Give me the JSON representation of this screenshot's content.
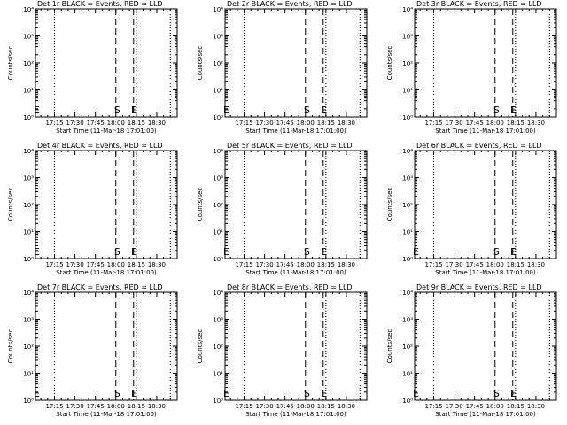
{
  "figure": {
    "background": "#ffffff",
    "ink": "#000000",
    "panel_count": 9
  },
  "chart_data": [
    {
      "type": "line",
      "title": "Det 1r BLACK = Events, RED = LLD",
      "xlabel": "Start Time (11-Mar-18 17:01:00)",
      "ylabel": "Counts/sec",
      "y_scale": "log",
      "ylim": [
        1,
        10000
      ],
      "y_tick_labels": [
        "10⁰",
        "10¹",
        "10²",
        "10³",
        "10⁴"
      ],
      "x_tick_labels": [
        "17:15",
        "17:30",
        "17:45",
        "18:00",
        "18:15",
        "18:30"
      ],
      "x_tick_minutes": [
        1035,
        1050,
        1065,
        1080,
        1095,
        1110
      ],
      "xlim_minutes": [
        1021,
        1125
      ],
      "series": [],
      "dotted_lines": [
        1035,
        1095,
        1120
      ],
      "dashed_lines": [
        1080,
        1093
      ],
      "markers": [
        {
          "label": "S",
          "x": 1081,
          "y": 1
        },
        {
          "label": "E",
          "x": 1093.5,
          "y": 1
        },
        {
          "label": "E",
          "x": 1022,
          "y": 1
        }
      ]
    },
    {
      "type": "line",
      "title": "Det 2r BLACK = Events, RED = LLD",
      "xlabel": "Start Time (11-Mar-18 17:01:00)",
      "ylabel": "Counts/sec",
      "y_scale": "log",
      "ylim": [
        1,
        10000
      ],
      "y_tick_labels": [
        "10⁰",
        "10¹",
        "10²",
        "10³",
        "10⁴"
      ],
      "x_tick_labels": [
        "17:15",
        "17:30",
        "17:45",
        "18:00",
        "18:15",
        "18:30"
      ],
      "x_tick_minutes": [
        1035,
        1050,
        1065,
        1080,
        1095,
        1110
      ],
      "xlim_minutes": [
        1021,
        1125
      ],
      "series": [],
      "dotted_lines": [
        1035,
        1095,
        1120
      ],
      "dashed_lines": [
        1080,
        1093
      ],
      "markers": [
        {
          "label": "S",
          "x": 1081,
          "y": 1
        },
        {
          "label": "E",
          "x": 1093.5,
          "y": 1
        },
        {
          "label": "E",
          "x": 1022,
          "y": 1
        }
      ]
    },
    {
      "type": "line",
      "title": "Det 3r BLACK = Events, RED = LLD",
      "xlabel": "Start Time (11-Mar-18 17:01:00)",
      "ylabel": "Counts/sec",
      "y_scale": "log",
      "ylim": [
        1,
        10000
      ],
      "y_tick_labels": [
        "10⁰",
        "10¹",
        "10²",
        "10³",
        "10⁴"
      ],
      "x_tick_labels": [
        "17:15",
        "17:30",
        "17:45",
        "18:00",
        "18:15",
        "18:30"
      ],
      "x_tick_minutes": [
        1035,
        1050,
        1065,
        1080,
        1095,
        1110
      ],
      "xlim_minutes": [
        1021,
        1125
      ],
      "series": [],
      "dotted_lines": [
        1035,
        1095,
        1120
      ],
      "dashed_lines": [
        1080,
        1093
      ],
      "markers": [
        {
          "label": "S",
          "x": 1081,
          "y": 1
        },
        {
          "label": "E",
          "x": 1093.5,
          "y": 1
        }
      ]
    },
    {
      "type": "line",
      "title": "Det 4r BLACK = Events, RED = LLD",
      "xlabel": "Start Time (11-Mar-18 17:01:00)",
      "ylabel": "Counts/sec",
      "y_scale": "log",
      "ylim": [
        1,
        10000
      ],
      "y_tick_labels": [
        "10⁰",
        "10¹",
        "10²",
        "10³",
        "10⁴"
      ],
      "x_tick_labels": [
        "17:15",
        "17:30",
        "17:45",
        "18:00",
        "18:15",
        "18:30"
      ],
      "x_tick_minutes": [
        1035,
        1050,
        1065,
        1080,
        1095,
        1110
      ],
      "xlim_minutes": [
        1021,
        1125
      ],
      "series": [],
      "dotted_lines": [
        1035,
        1095,
        1120
      ],
      "dashed_lines": [
        1080,
        1093
      ],
      "markers": [
        {
          "label": "S",
          "x": 1081,
          "y": 1
        },
        {
          "label": "E",
          "x": 1093.5,
          "y": 1
        },
        {
          "label": "E",
          "x": 1022,
          "y": 1
        }
      ]
    },
    {
      "type": "line",
      "title": "Det 5r BLACK = Events, RED = LLD",
      "xlabel": "Start Time (11-Mar-18 17:01:00)",
      "ylabel": "Counts/sec",
      "y_scale": "log",
      "ylim": [
        1,
        10000
      ],
      "y_tick_labels": [
        "10⁰",
        "10¹",
        "10²",
        "10³",
        "10⁴"
      ],
      "x_tick_labels": [
        "17:15",
        "17:30",
        "17:45",
        "18:00",
        "18:15",
        "18:30"
      ],
      "x_tick_minutes": [
        1035,
        1050,
        1065,
        1080,
        1095,
        1110
      ],
      "xlim_minutes": [
        1021,
        1125
      ],
      "series": [],
      "dotted_lines": [
        1035,
        1095,
        1120
      ],
      "dashed_lines": [
        1080,
        1093
      ],
      "markers": [
        {
          "label": "S",
          "x": 1081,
          "y": 1
        },
        {
          "label": "E",
          "x": 1093.5,
          "y": 1
        },
        {
          "label": "E",
          "x": 1022,
          "y": 1
        }
      ]
    },
    {
      "type": "line",
      "title": "Det 6r BLACK = Events, RED = LLD",
      "xlabel": "Start Time (11-Mar-18 17:01:00)",
      "ylabel": "Counts/sec",
      "y_scale": "log",
      "ylim": [
        1,
        10000
      ],
      "y_tick_labels": [
        "10⁰",
        "10¹",
        "10²",
        "10³",
        "10⁴"
      ],
      "x_tick_labels": [
        "17:15",
        "17:30",
        "17:45",
        "18:00",
        "18:15",
        "18:30"
      ],
      "x_tick_minutes": [
        1035,
        1050,
        1065,
        1080,
        1095,
        1110
      ],
      "xlim_minutes": [
        1021,
        1125
      ],
      "series": [],
      "dotted_lines": [
        1035,
        1095,
        1120
      ],
      "dashed_lines": [
        1080,
        1093
      ],
      "markers": [
        {
          "label": "S",
          "x": 1081,
          "y": 1
        },
        {
          "label": "E",
          "x": 1093.5,
          "y": 1
        },
        {
          "label": "E",
          "x": 1022,
          "y": 1
        }
      ]
    },
    {
      "type": "line",
      "title": "Det 7r BLACK = Events, RED = LLD",
      "xlabel": "Start Time (11-Mar-18 17:01:00)",
      "ylabel": "Counts/sec",
      "y_scale": "log",
      "ylim": [
        1,
        10000
      ],
      "y_tick_labels": [
        "10⁰",
        "10¹",
        "10²",
        "10³",
        "10⁴"
      ],
      "x_tick_labels": [
        "17:15",
        "17:30",
        "17:45",
        "18:00",
        "18:15",
        "18:30"
      ],
      "x_tick_minutes": [
        1035,
        1050,
        1065,
        1080,
        1095,
        1110
      ],
      "xlim_minutes": [
        1021,
        1125
      ],
      "series": [],
      "dotted_lines": [
        1035,
        1095,
        1120
      ],
      "dashed_lines": [
        1080,
        1093
      ],
      "markers": [
        {
          "label": "S",
          "x": 1081,
          "y": 1
        },
        {
          "label": "E",
          "x": 1093.5,
          "y": 1
        },
        {
          "label": "E",
          "x": 1022,
          "y": 1
        }
      ]
    },
    {
      "type": "line",
      "title": "Det 8r BLACK = Events, RED = LLD",
      "xlabel": "Start Time (11-Mar-18 17:01:00)",
      "ylabel": "Counts/sec",
      "y_scale": "log",
      "ylim": [
        1,
        10000
      ],
      "y_tick_labels": [
        "10⁰",
        "10¹",
        "10²",
        "10³",
        "10⁴"
      ],
      "x_tick_labels": [
        "17:15",
        "17:30",
        "17:45",
        "18:00",
        "18:15",
        "18:30"
      ],
      "x_tick_minutes": [
        1035,
        1050,
        1065,
        1080,
        1095,
        1110
      ],
      "xlim_minutes": [
        1021,
        1125
      ],
      "series": [],
      "dotted_lines": [
        1035,
        1095,
        1120
      ],
      "dashed_lines": [
        1080,
        1093
      ],
      "markers": [
        {
          "label": "S",
          "x": 1081,
          "y": 1
        },
        {
          "label": "E",
          "x": 1093.5,
          "y": 1
        },
        {
          "label": "E",
          "x": 1022,
          "y": 1
        }
      ]
    },
    {
      "type": "line",
      "title": "Det 9r BLACK = Events, RED = LLD",
      "xlabel": "Start Time (11-Mar-18 17:01:00)",
      "ylabel": "Counts/sec",
      "y_scale": "log",
      "ylim": [
        1,
        10000
      ],
      "y_tick_labels": [
        "10⁰",
        "10¹",
        "10²",
        "10³",
        "10⁴"
      ],
      "x_tick_labels": [
        "17:15",
        "17:30",
        "17:45",
        "18:00",
        "18:15",
        "18:30"
      ],
      "x_tick_minutes": [
        1035,
        1050,
        1065,
        1080,
        1095,
        1110
      ],
      "xlim_minutes": [
        1021,
        1125
      ],
      "series": [],
      "dotted_lines": [
        1035,
        1095,
        1120
      ],
      "dashed_lines": [
        1080,
        1093
      ],
      "markers": [
        {
          "label": "S",
          "x": 1081,
          "y": 1
        },
        {
          "label": "E",
          "x": 1093.5,
          "y": 1
        },
        {
          "label": "E",
          "x": 1022,
          "y": 1
        }
      ]
    }
  ]
}
